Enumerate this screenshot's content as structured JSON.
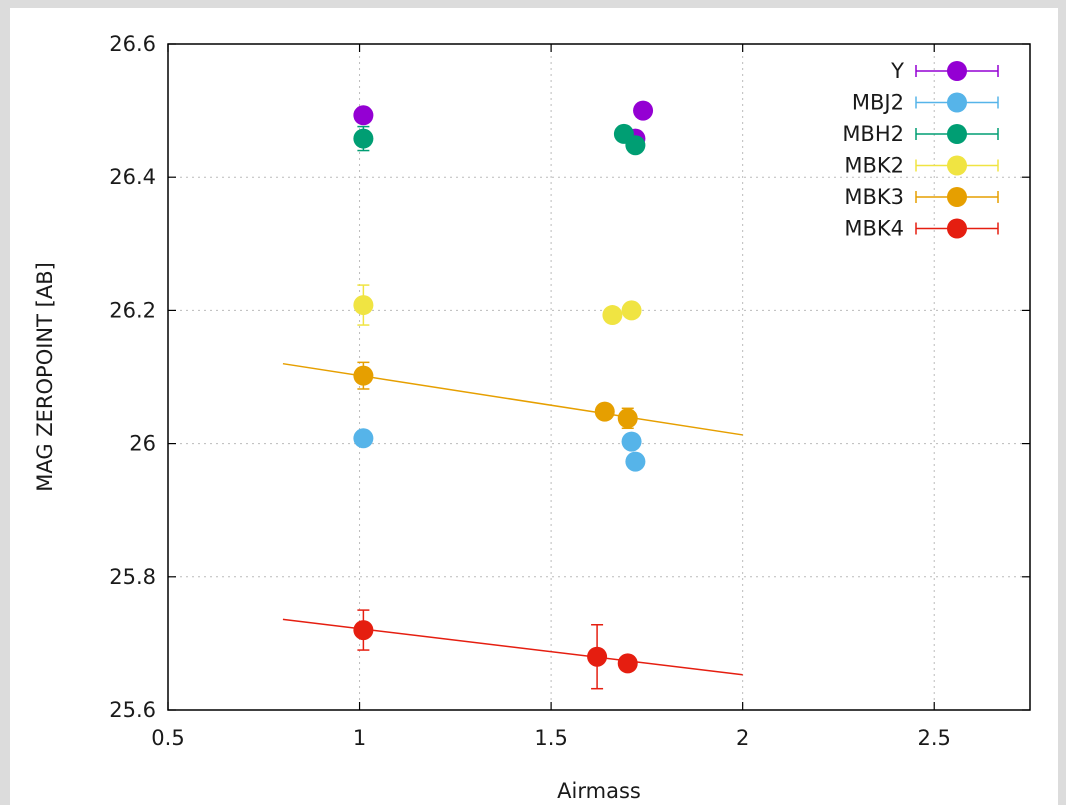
{
  "chart_data": {
    "type": "scatter",
    "title": "",
    "xlabel": "Airmass",
    "ylabel": "MAG ZEROPOINT [AB]",
    "xlim": [
      0.5,
      2.75
    ],
    "ylim": [
      25.6,
      26.6
    ],
    "x_ticks": [
      {
        "value": 0.5,
        "label": "0.5"
      },
      {
        "value": 1,
        "label": "1"
      },
      {
        "value": 1.5,
        "label": "1.5"
      },
      {
        "value": 2,
        "label": "2"
      },
      {
        "value": 2.5,
        "label": "2.5"
      }
    ],
    "y_ticks": [
      {
        "value": 25.6,
        "label": "25.6"
      },
      {
        "value": 25.8,
        "label": "25.8"
      },
      {
        "value": 26,
        "label": "26"
      },
      {
        "value": 26.2,
        "label": "26.2"
      },
      {
        "value": 26.4,
        "label": "26.4"
      },
      {
        "value": 26.6,
        "label": "26.6"
      }
    ],
    "grid": true,
    "legend_position": "top-right",
    "series": [
      {
        "name": "Y",
        "color": "#9400d3",
        "points": [
          {
            "x": 1.01,
            "y": 26.493,
            "err": 0.0
          },
          {
            "x": 1.72,
            "y": 26.458,
            "err": 0.0
          },
          {
            "x": 1.74,
            "y": 26.5,
            "err": 0.0
          }
        ]
      },
      {
        "name": "MBJ2",
        "color": "#56b4e9",
        "points": [
          {
            "x": 1.01,
            "y": 26.008,
            "err": 0.0
          },
          {
            "x": 1.71,
            "y": 26.003,
            "err": 0.0
          },
          {
            "x": 1.72,
            "y": 25.973,
            "err": 0.0
          }
        ]
      },
      {
        "name": "MBH2",
        "color": "#009e73",
        "points": [
          {
            "x": 1.01,
            "y": 26.458,
            "err": 0.018
          },
          {
            "x": 1.69,
            "y": 26.465,
            "err": 0.0
          },
          {
            "x": 1.72,
            "y": 26.448,
            "err": 0.0
          }
        ]
      },
      {
        "name": "MBK2",
        "color": "#f0e442",
        "points": [
          {
            "x": 1.01,
            "y": 26.208,
            "err": 0.03
          },
          {
            "x": 1.66,
            "y": 26.193,
            "err": 0.0
          },
          {
            "x": 1.71,
            "y": 26.2,
            "err": 0.0
          }
        ]
      },
      {
        "name": "MBK3",
        "color": "#e69f00",
        "points": [
          {
            "x": 1.01,
            "y": 26.102,
            "err": 0.02
          },
          {
            "x": 1.64,
            "y": 26.048,
            "err": 0.0
          },
          {
            "x": 1.7,
            "y": 26.038,
            "err": 0.015
          }
        ],
        "fit_line": {
          "x": [
            0.8,
            2.0
          ],
          "y": [
            26.12,
            26.013
          ]
        }
      },
      {
        "name": "MBK4",
        "color": "#e51e10",
        "points": [
          {
            "x": 1.01,
            "y": 25.72,
            "err": 0.03
          },
          {
            "x": 1.62,
            "y": 25.68,
            "err": 0.048
          },
          {
            "x": 1.7,
            "y": 25.67,
            "err": 0.0
          }
        ],
        "fit_line": {
          "x": [
            0.8,
            2.0
          ],
          "y": [
            25.736,
            25.653
          ]
        }
      }
    ]
  }
}
